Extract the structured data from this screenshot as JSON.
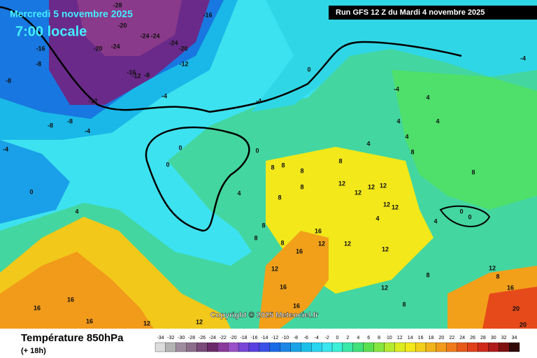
{
  "header": {
    "date": "Mercredi 5 novembre 2025",
    "time": "7:00 locale",
    "run": "Run GFS 12 Z du Mardi 4 novembre 2025"
  },
  "copyright": "Copyright © 2025 Meteociel.fr",
  "legend": {
    "title": "Température 850hPa",
    "subtitle": "(+ 18h)",
    "ticks": [
      -34,
      -32,
      -30,
      -28,
      -26,
      -24,
      -22,
      -20,
      -18,
      -16,
      -14,
      -12,
      -10,
      -8,
      -6,
      -4,
      -2,
      0,
      2,
      4,
      6,
      8,
      10,
      12,
      14,
      16,
      18,
      20,
      22,
      24,
      26,
      28,
      30,
      32,
      34
    ],
    "colors": [
      "#dcdcdc",
      "#b4b4b4",
      "#a08ca0",
      "#8c6e8c",
      "#7a4a7a",
      "#6a2a6a",
      "#8a3a9a",
      "#9a50c8",
      "#7a46d8",
      "#5a40e0",
      "#3a50e8",
      "#1a6ae8",
      "#1a86e8",
      "#1aa4e8",
      "#1ac0ea",
      "#28d4f0",
      "#3ae6f0",
      "#3af0d8",
      "#3ae8a8",
      "#40e07a",
      "#58e050",
      "#86e640",
      "#b4ea30",
      "#dcec20",
      "#f2e81a",
      "#f2d01a",
      "#f2b41a",
      "#f29a1a",
      "#f07a1a",
      "#e85a1a",
      "#e0401a",
      "#d02a1a",
      "#b01a1a",
      "#801010",
      "#300808"
    ]
  },
  "contour_labels": [
    -28,
    -16,
    -20,
    -24,
    -24,
    -20,
    -24,
    -24,
    -20,
    -12,
    -16,
    -8,
    -16,
    -12,
    -8,
    -12,
    -8,
    -8,
    -8,
    -4,
    -4,
    -4,
    0,
    -4,
    0,
    0,
    0,
    0,
    4,
    4,
    -4,
    -4,
    4,
    4,
    4,
    4,
    8,
    4,
    8,
    8,
    8,
    8,
    8,
    12,
    12,
    12,
    12,
    12,
    12,
    4,
    8,
    4,
    0,
    0,
    8,
    8,
    16,
    12,
    12,
    8,
    8,
    16,
    12,
    8,
    12,
    8,
    12,
    16,
    12,
    8,
    16,
    16,
    16,
    12,
    12,
    16,
    16,
    20,
    20
  ]
}
